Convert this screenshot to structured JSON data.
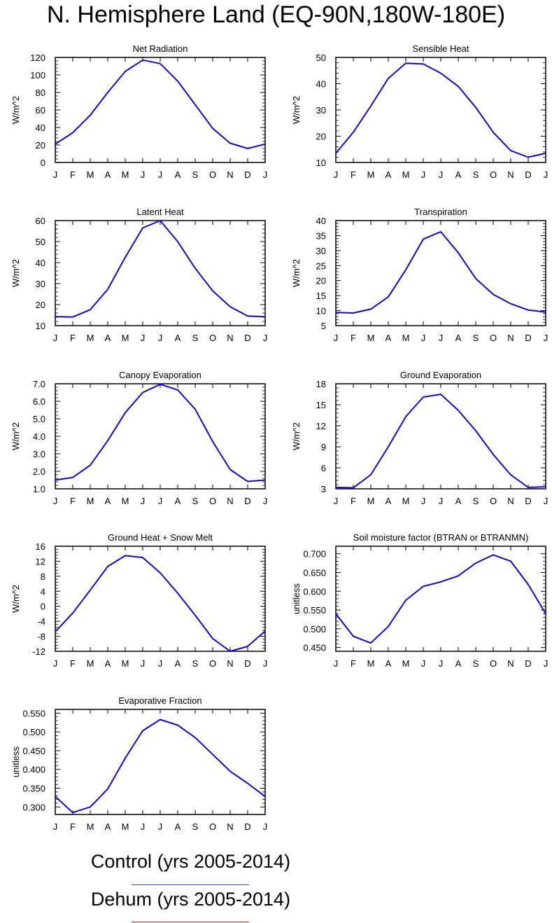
{
  "title": "N. Hemisphere Land (EQ-90N,180W-180E)",
  "legend": [
    {
      "label": "Control (yrs 2005-2014)",
      "color": "#3344cc"
    },
    {
      "label": "Dehum (yrs 2005-2014)",
      "color": "#ee2222"
    }
  ],
  "line_color": "#2200cc",
  "chart_data": [
    {
      "type": "line",
      "title": "Net Radiation",
      "ylabel": "W/m^2",
      "categories": [
        "J",
        "F",
        "M",
        "A",
        "M",
        "J",
        "J",
        "A",
        "S",
        "O",
        "N",
        "D",
        "J"
      ],
      "ylim": [
        0,
        120
      ],
      "yticks": [
        0,
        20,
        40,
        60,
        80,
        100,
        120
      ],
      "ytick_labels": [
        "0",
        "20",
        "40",
        "60",
        "80",
        "100",
        "120"
      ],
      "series": [
        {
          "name": "Control (yrs 2005-2014)",
          "values": [
            21,
            34,
            54,
            80,
            104,
            117,
            113,
            93,
            66,
            39,
            22,
            16,
            21
          ]
        }
      ]
    },
    {
      "type": "line",
      "title": "Sensible Heat",
      "ylabel": "W/m^2",
      "categories": [
        "J",
        "F",
        "M",
        "A",
        "M",
        "J",
        "J",
        "A",
        "S",
        "O",
        "N",
        "D",
        "J"
      ],
      "ylim": [
        10,
        50
      ],
      "yticks": [
        10,
        20,
        30,
        40,
        50
      ],
      "ytick_labels": [
        "10",
        "20",
        "30",
        "40",
        "50"
      ],
      "series": [
        {
          "name": "Control (yrs 2005-2014)",
          "values": [
            13.5,
            21.5,
            31.5,
            42,
            47.8,
            47.5,
            44,
            39,
            31,
            21.5,
            14.5,
            12,
            13.5
          ]
        }
      ]
    },
    {
      "type": "line",
      "title": "Latent Heat",
      "ylabel": "W/m^2",
      "categories": [
        "J",
        "F",
        "M",
        "A",
        "M",
        "J",
        "J",
        "A",
        "S",
        "O",
        "N",
        "D",
        "J"
      ],
      "ylim": [
        10,
        60
      ],
      "yticks": [
        10,
        20,
        30,
        40,
        50,
        60
      ],
      "ytick_labels": [
        "10",
        "20",
        "30",
        "40",
        "50",
        "60"
      ],
      "series": [
        {
          "name": "Control (yrs 2005-2014)",
          "values": [
            14.3,
            14.1,
            17.6,
            27.3,
            42.5,
            56.5,
            60,
            50,
            37.3,
            26.6,
            19,
            14.6,
            14.2
          ]
        }
      ]
    },
    {
      "type": "line",
      "title": "Transpiration",
      "ylabel": "W/m^2",
      "categories": [
        "J",
        "F",
        "M",
        "A",
        "M",
        "J",
        "J",
        "A",
        "S",
        "O",
        "N",
        "D",
        "J"
      ],
      "ylim": [
        5,
        40
      ],
      "yticks": [
        5,
        10,
        15,
        20,
        25,
        30,
        35,
        40
      ],
      "ytick_labels": [
        "5",
        "10",
        "15",
        "20",
        "25",
        "30",
        "35",
        "40"
      ],
      "series": [
        {
          "name": "Control (yrs 2005-2014)",
          "values": [
            9.4,
            9.2,
            10.5,
            14.6,
            23.6,
            33.8,
            36.3,
            29.3,
            20.7,
            15.4,
            12.3,
            10.2,
            9.5
          ]
        }
      ]
    },
    {
      "type": "line",
      "title": "Canopy Evaporation",
      "ylabel": "W/m^2",
      "categories": [
        "J",
        "F",
        "M",
        "A",
        "M",
        "J",
        "J",
        "A",
        "S",
        "O",
        "N",
        "D",
        "J"
      ],
      "ylim": [
        1,
        7
      ],
      "yticks": [
        1,
        2,
        3,
        4,
        5,
        6,
        7
      ],
      "ytick_labels": [
        "1.0",
        "2.0",
        "3.0",
        "4.0",
        "5.0",
        "6.0",
        "7.0"
      ],
      "series": [
        {
          "name": "Control (yrs 2005-2014)",
          "values": [
            1.5,
            1.65,
            2.35,
            3.75,
            5.35,
            6.5,
            6.97,
            6.65,
            5.55,
            3.7,
            2.1,
            1.42,
            1.5
          ]
        }
      ]
    },
    {
      "type": "line",
      "title": "Ground Evaporation",
      "ylabel": "W/m^2",
      "categories": [
        "J",
        "F",
        "M",
        "A",
        "M",
        "J",
        "J",
        "A",
        "S",
        "O",
        "N",
        "D",
        "J"
      ],
      "ylim": [
        3,
        18
      ],
      "yticks": [
        3,
        6,
        9,
        12,
        15,
        18
      ],
      "ytick_labels": [
        "3",
        "6",
        "9",
        "12",
        "15",
        "18"
      ],
      "series": [
        {
          "name": "Control (yrs 2005-2014)",
          "values": [
            3.2,
            3.15,
            5,
            9,
            13.3,
            16.1,
            16.5,
            14.2,
            11.3,
            7.9,
            5,
            3.2,
            3.3
          ]
        }
      ]
    },
    {
      "type": "line",
      "title": "Ground Heat + Snow Melt",
      "ylabel": "W/m^2",
      "categories": [
        "J",
        "F",
        "M",
        "A",
        "M",
        "J",
        "J",
        "A",
        "S",
        "O",
        "N",
        "D",
        "J"
      ],
      "ylim": [
        -12,
        16
      ],
      "yticks": [
        -12,
        -8,
        -4,
        0,
        4,
        8,
        12,
        16
      ],
      "ytick_labels": [
        "-12",
        "-8",
        "-4",
        "0",
        "4",
        "8",
        "12",
        "16"
      ],
      "series": [
        {
          "name": "Control (yrs 2005-2014)",
          "values": [
            -6.8,
            -1.8,
            4.3,
            10.6,
            13.5,
            13,
            8.9,
            3.5,
            -2.4,
            -8.6,
            -12,
            -10.7,
            -6.6
          ]
        }
      ]
    },
    {
      "type": "line",
      "title": "Soil moisture factor (BTRAN or BTRANMN)",
      "ylabel": "unitless",
      "categories": [
        "J",
        "F",
        "M",
        "A",
        "M",
        "J",
        "J",
        "A",
        "S",
        "O",
        "N",
        "D",
        "J"
      ],
      "ylim": [
        0.44,
        0.72
      ],
      "yticks": [
        0.45,
        0.5,
        0.55,
        0.6,
        0.65,
        0.7
      ],
      "ytick_labels": [
        "0.450",
        "0.500",
        "0.550",
        "0.600",
        "0.650",
        "0.700"
      ],
      "series": [
        {
          "name": "Control (yrs 2005-2014)",
          "values": [
            0.54,
            0.48,
            0.462,
            0.506,
            0.576,
            0.613,
            0.625,
            0.641,
            0.675,
            0.697,
            0.68,
            0.618,
            0.54
          ]
        }
      ]
    },
    {
      "type": "line",
      "title": "Evaporative Fraction",
      "ylabel": "unitless",
      "categories": [
        "J",
        "F",
        "M",
        "A",
        "M",
        "J",
        "J",
        "A",
        "S",
        "O",
        "N",
        "D",
        "J"
      ],
      "ylim": [
        0.28,
        0.56
      ],
      "yticks": [
        0.3,
        0.35,
        0.4,
        0.45,
        0.5,
        0.55
      ],
      "ytick_labels": [
        "0.300",
        "0.350",
        "0.400",
        "0.450",
        "0.500",
        "0.550"
      ],
      "series": [
        {
          "name": "Control (yrs 2005-2014)",
          "values": [
            0.328,
            0.285,
            0.3,
            0.348,
            0.43,
            0.503,
            0.533,
            0.518,
            0.485,
            0.44,
            0.395,
            0.363,
            0.328
          ]
        }
      ]
    }
  ]
}
